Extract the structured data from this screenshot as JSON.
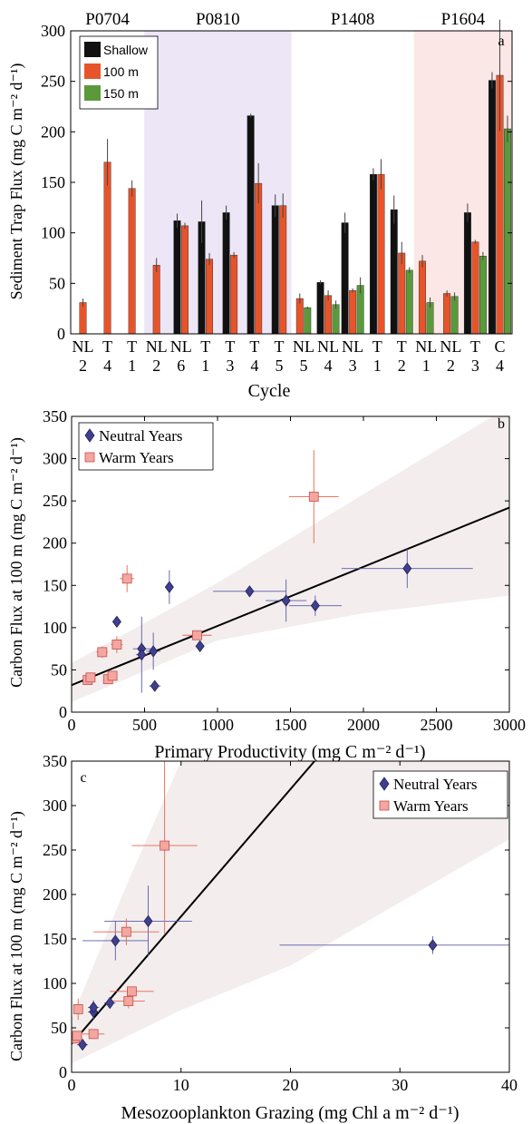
{
  "chart_data": [
    {
      "panel": "a",
      "type": "bar",
      "ylabel": "Sediment Trap Flux (mg C m⁻² d⁻¹)",
      "xlabel": "Cycle",
      "ylim": [
        0,
        300
      ],
      "yticks": [
        0,
        50,
        100,
        150,
        200,
        250,
        300
      ],
      "legend_position": "top-left",
      "cruises": [
        {
          "name": "P0704",
          "shade": "none"
        },
        {
          "name": "P0810",
          "shade": "#ece6f7"
        },
        {
          "name": "P1408",
          "shade": "none"
        },
        {
          "name": "P1604",
          "shade": "#fbe7e5"
        }
      ],
      "series": [
        {
          "name": "Shallow",
          "color": "#111111"
        },
        {
          "name": "100 m",
          "color": "#e8542a"
        },
        {
          "name": "150 m",
          "color": "#5a9a3a"
        }
      ],
      "groups": [
        {
          "cruise": "P0704",
          "type_label": "NL",
          "num_label": "2",
          "values": [
            null,
            31,
            null
          ],
          "errors": [
            null,
            4,
            null
          ]
        },
        {
          "cruise": "P0704",
          "type_label": "T",
          "num_label": "4",
          "values": [
            null,
            170,
            null
          ],
          "errors": [
            null,
            23,
            null
          ]
        },
        {
          "cruise": "P0704",
          "type_label": "T",
          "num_label": "1",
          "values": [
            null,
            144,
            null
          ],
          "errors": [
            null,
            8,
            null
          ]
        },
        {
          "cruise": "P0810",
          "type_label": "NL",
          "num_label": "2",
          "values": [
            null,
            68,
            null
          ],
          "errors": [
            null,
            7,
            null
          ]
        },
        {
          "cruise": "P0810",
          "type_label": "NL",
          "num_label": "6",
          "values": [
            112,
            107,
            null
          ],
          "errors": [
            7,
            3,
            null
          ]
        },
        {
          "cruise": "P0810",
          "type_label": "T",
          "num_label": "1",
          "values": [
            111,
            74,
            null
          ],
          "errors": [
            21,
            6,
            null
          ]
        },
        {
          "cruise": "P0810",
          "type_label": "T",
          "num_label": "3",
          "values": [
            120,
            78,
            null
          ],
          "errors": [
            7,
            3,
            null
          ]
        },
        {
          "cruise": "P0810",
          "type_label": "T",
          "num_label": "4",
          "values": [
            216,
            149,
            null
          ],
          "errors": [
            2,
            20,
            null
          ]
        },
        {
          "cruise": "P0810",
          "type_label": "T",
          "num_label": "5",
          "values": [
            127,
            127,
            null
          ],
          "errors": [
            11,
            12,
            null
          ]
        },
        {
          "cruise": "P1408",
          "type_label": "NL",
          "num_label": "5",
          "values": [
            null,
            35,
            26
          ],
          "errors": [
            null,
            5,
            1
          ]
        },
        {
          "cruise": "P1408",
          "type_label": "NL",
          "num_label": "4",
          "values": [
            51,
            38,
            29
          ],
          "errors": [
            2,
            5,
            4
          ]
        },
        {
          "cruise": "P1408",
          "type_label": "NL",
          "num_label": "3",
          "values": [
            110,
            43,
            48
          ],
          "errors": [
            10,
            2,
            8
          ]
        },
        {
          "cruise": "P1408",
          "type_label": "T",
          "num_label": "1",
          "values": [
            158,
            158,
            null
          ],
          "errors": [
            6,
            15,
            null
          ]
        },
        {
          "cruise": "P1408",
          "type_label": "T",
          "num_label": "2",
          "values": [
            123,
            80,
            63
          ],
          "errors": [
            14,
            11,
            3
          ]
        },
        {
          "cruise": "P1604",
          "type_label": "NL",
          "num_label": "1",
          "values": [
            null,
            72,
            31
          ],
          "errors": [
            null,
            6,
            5
          ]
        },
        {
          "cruise": "P1604",
          "type_label": "NL",
          "num_label": "2",
          "values": [
            null,
            40,
            37
          ],
          "errors": [
            null,
            3,
            4
          ]
        },
        {
          "cruise": "P1604",
          "type_label": "T",
          "num_label": "3",
          "values": [
            120,
            91,
            77
          ],
          "errors": [
            9,
            2,
            4
          ]
        },
        {
          "cruise": "P1604",
          "type_label": "C",
          "num_label": "4",
          "values": [
            251,
            256,
            203
          ],
          "errors": [
            8,
            55,
            13
          ]
        }
      ]
    },
    {
      "panel": "b",
      "type": "scatter",
      "xlabel": "Primary Productivity (mg C m⁻² d⁻¹)",
      "ylabel": "Carbon Flux at 100 m (mg C m⁻² d⁻¹)",
      "xlim": [
        0,
        3000
      ],
      "ylim": [
        0,
        350
      ],
      "xticks": [
        0,
        500,
        1000,
        1500,
        2000,
        2500,
        3000
      ],
      "yticks": [
        0,
        50,
        100,
        150,
        200,
        250,
        300,
        350
      ],
      "legend_position": "top-left",
      "fit_line": {
        "x": [
          0,
          3000
        ],
        "y": [
          32,
          242
        ]
      },
      "confidence_band": {
        "x": [
          0,
          1000,
          2000,
          3000
        ],
        "upper": [
          58,
          153,
          258,
          362
        ],
        "lower": [
          12,
          85,
          117,
          138
        ]
      },
      "series": [
        {
          "name": "Neutral Years",
          "marker": "diamond",
          "color": "#3f3f8f",
          "points": [
            {
              "x": 310,
              "y": 107,
              "xerr": 20,
              "yerr": 3
            },
            {
              "x": 480,
              "y": 75,
              "xerr": 60,
              "yerr": 8
            },
            {
              "x": 480,
              "y": 68,
              "xerr": 40,
              "yerr": 45
            },
            {
              "x": 560,
              "y": 72,
              "xerr": 50,
              "yerr": 22
            },
            {
              "x": 570,
              "y": 31,
              "xerr": 40,
              "yerr": 4
            },
            {
              "x": 670,
              "y": 148,
              "xerr": 30,
              "yerr": 20
            },
            {
              "x": 880,
              "y": 78,
              "xerr": 30,
              "yerr": 3
            },
            {
              "x": 1220,
              "y": 143,
              "xerr": 250,
              "yerr": 6
            },
            {
              "x": 1470,
              "y": 132,
              "xerr": 140,
              "yerr": 25
            },
            {
              "x": 1670,
              "y": 126,
              "xerr": 180,
              "yerr": 12
            },
            {
              "x": 2300,
              "y": 170,
              "xerr": 450,
              "yerr": 23
            }
          ]
        },
        {
          "name": "Warm Years",
          "marker": "square",
          "color": "#f4a6a0",
          "points": [
            {
              "x": 110,
              "y": 38,
              "xerr": 30,
              "yerr": 3
            },
            {
              "x": 130,
              "y": 41,
              "xerr": 30,
              "yerr": 3
            },
            {
              "x": 210,
              "y": 71,
              "xerr": 40,
              "yerr": 7
            },
            {
              "x": 250,
              "y": 39,
              "xerr": 25,
              "yerr": 3
            },
            {
              "x": 280,
              "y": 43,
              "xerr": 30,
              "yerr": 3
            },
            {
              "x": 310,
              "y": 80,
              "xerr": 40,
              "yerr": 10
            },
            {
              "x": 380,
              "y": 158,
              "xerr": 50,
              "yerr": 16
            },
            {
              "x": 860,
              "y": 91,
              "xerr": 100,
              "yerr": 3
            },
            {
              "x": 1660,
              "y": 255,
              "xerr": 170,
              "yerr": 55
            }
          ]
        }
      ]
    },
    {
      "panel": "c",
      "type": "scatter",
      "xlabel": "Mesozooplankton Grazing (mg Chl a m⁻² d⁻¹)",
      "ylabel": "Carbon Flux at 100 m (mg C m⁻² d⁻¹)",
      "xlim": [
        0,
        40
      ],
      "ylim": [
        0,
        350
      ],
      "xticks": [
        0,
        10,
        20,
        30,
        40
      ],
      "yticks": [
        0,
        50,
        100,
        150,
        200,
        250,
        300,
        350
      ],
      "legend_position": "top-right",
      "fit_line": {
        "x": [
          0,
          22.2
        ],
        "y": [
          32,
          350
        ]
      },
      "confidence_band": {
        "x": [
          0,
          5,
          10,
          20,
          40
        ],
        "upper": [
          60,
          210,
          350,
          350,
          350
        ],
        "lower": [
          10,
          40,
          70,
          120,
          262
        ]
      },
      "series": [
        {
          "name": "Neutral Years",
          "marker": "diamond",
          "color": "#3f3f8f",
          "points": [
            {
              "x": 1.0,
              "y": 31,
              "xerr": 0.5,
              "yerr": 3
            },
            {
              "x": 2.0,
              "y": 68,
              "xerr": 0.5,
              "yerr": 8
            },
            {
              "x": 2.0,
              "y": 73,
              "xerr": 0.5,
              "yerr": 8
            },
            {
              "x": 3.5,
              "y": 78,
              "xerr": 0.5,
              "yerr": 3
            },
            {
              "x": 4.0,
              "y": 148,
              "xerr": 3,
              "yerr": 22
            },
            {
              "x": 7.0,
              "y": 170,
              "xerr": 4,
              "yerr": 40
            },
            {
              "x": 33.0,
              "y": 143,
              "xerr": 14,
              "yerr": 10
            }
          ]
        },
        {
          "name": "Warm Years",
          "marker": "square",
          "color": "#f4a6a0",
          "points": [
            {
              "x": 0.3,
              "y": 38,
              "xerr": 0.3,
              "yerr": 3
            },
            {
              "x": 0.5,
              "y": 41,
              "xerr": 0.3,
              "yerr": 3
            },
            {
              "x": 0.6,
              "y": 71,
              "xerr": 0.4,
              "yerr": 12
            },
            {
              "x": 2.0,
              "y": 43,
              "xerr": 1,
              "yerr": 3
            },
            {
              "x": 5.0,
              "y": 158,
              "xerr": 3,
              "yerr": 15
            },
            {
              "x": 5.2,
              "y": 80,
              "xerr": 1.5,
              "yerr": 8
            },
            {
              "x": 5.5,
              "y": 91,
              "xerr": 2,
              "yerr": 5
            },
            {
              "x": 8.5,
              "y": 255,
              "xerr": 3,
              "yerr": 100
            }
          ]
        }
      ]
    }
  ]
}
